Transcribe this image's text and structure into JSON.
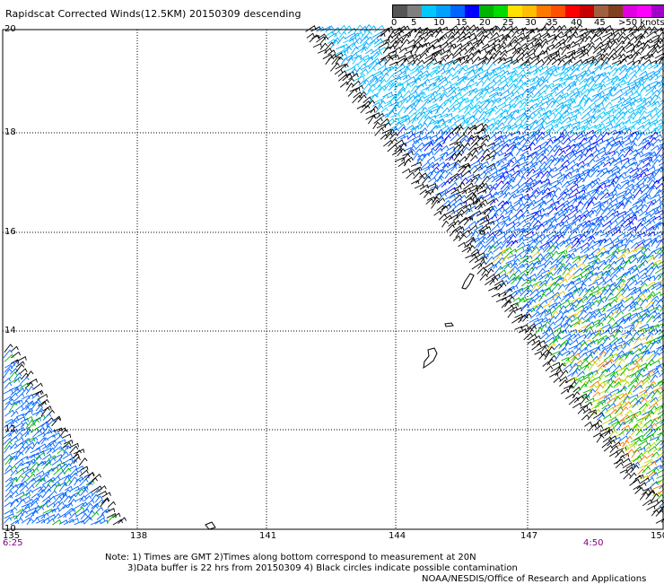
{
  "title": "Rapidscat Corrected Winds(12.5KM) 20150309 descending",
  "colorbar": {
    "colors": [
      "#555555",
      "#7f7f7f",
      "#00c8ff",
      "#00a0ff",
      "#0064ff",
      "#0000ff",
      "#00b400",
      "#00dc00",
      "#ffe000",
      "#ffbe00",
      "#ff7800",
      "#ff5000",
      "#ff0000",
      "#c80000",
      "#a06040",
      "#804020",
      "#e000e0",
      "#ff00ff",
      "#a000c8",
      "#5a0090"
    ],
    "labels": [
      "0",
      "5",
      "10",
      "15",
      "20",
      "25",
      "30",
      "35",
      "40",
      "45",
      ">50 knots"
    ]
  },
  "axes": {
    "lat_labels": [
      "20",
      "18",
      "16",
      "14",
      "12",
      "10"
    ],
    "lon_labels": [
      "135",
      "138",
      "141",
      "144",
      "147",
      "150"
    ]
  },
  "time_labels": {
    "left": "6:25",
    "right": "4:50"
  },
  "notes": {
    "line1": "Note: 1) Times are GMT 2)Times along bottom correspond to measurement at 20N",
    "line2": "3)Data buffer is 22 hrs from 20150309 4) Black circles indicate possible contamination",
    "line3": "NOAA/NESDIS/Office of Research and Applications"
  }
}
